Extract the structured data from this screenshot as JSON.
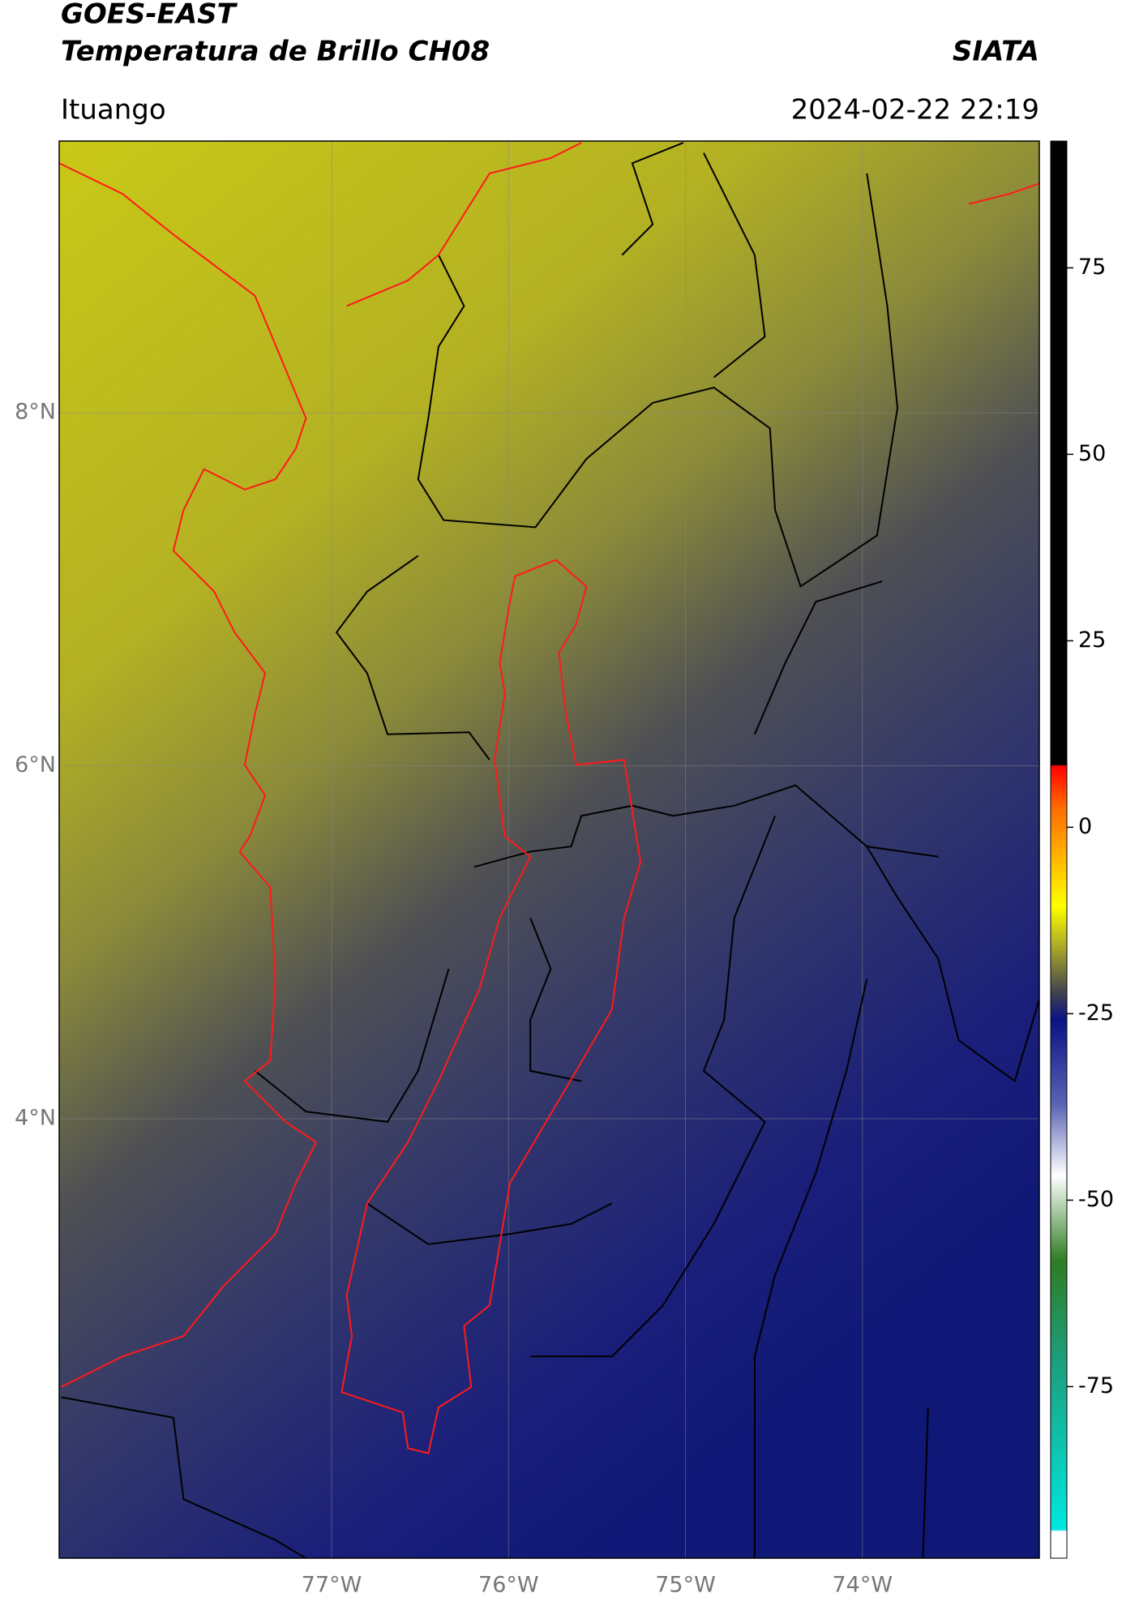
{
  "header": {
    "title": "GOES-EAST",
    "subtitle": "Temperatura de Brillo CH08",
    "source": "SIATA",
    "location": "Ituango",
    "datetime": "2024-02-22 22:19"
  },
  "map": {
    "xlim": [
      -78.54,
      -73.0
    ],
    "ylim": [
      1.51,
      9.54
    ],
    "xticks": [
      {
        "value": -77,
        "label": "77°W"
      },
      {
        "value": -76,
        "label": "76°W"
      },
      {
        "value": -75,
        "label": "75°W"
      },
      {
        "value": -74,
        "label": "74°W"
      }
    ],
    "yticks": [
      {
        "value": 8,
        "label": "8°N"
      },
      {
        "value": 6,
        "label": "6°N"
      },
      {
        "value": 4,
        "label": "4°N"
      }
    ],
    "grid": true,
    "colorbar": {
      "lim": [
        -98,
        92
      ],
      "ticks": [
        75,
        50,
        25,
        0,
        -25,
        -50,
        -75
      ]
    }
  }
}
